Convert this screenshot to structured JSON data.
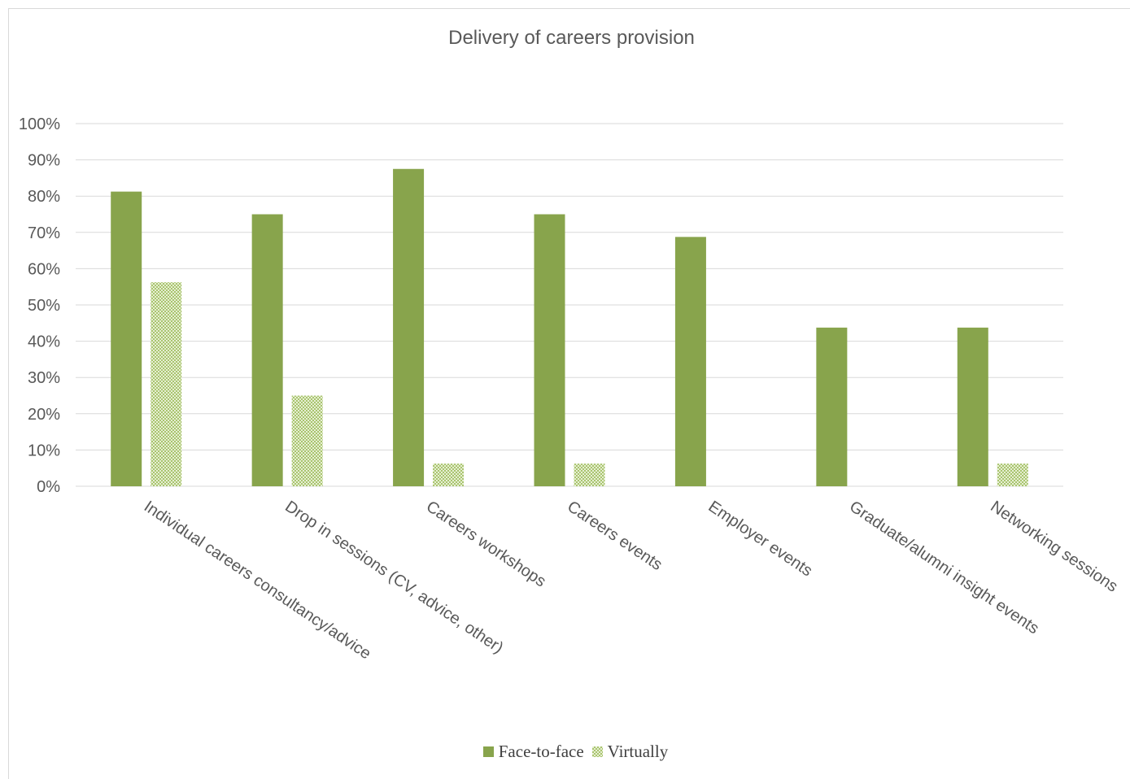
{
  "chart_data": {
    "type": "bar",
    "title": "Delivery of careers provision",
    "categories": [
      "Individual careers consultancy/advice",
      "Drop in sessions (CV, advice, other)",
      "Careers workshops",
      "Careers events",
      "Employer events",
      "Graduate/alumni insight events",
      "Networking sessions"
    ],
    "series": [
      {
        "name": "Face-to-face",
        "values": [
          81.25,
          75,
          87.5,
          75,
          68.75,
          43.75,
          43.75
        ]
      },
      {
        "name": "Virtually",
        "values": [
          56.25,
          25,
          6.25,
          6.25,
          0,
          0,
          6.25
        ]
      }
    ],
    "ylim": [
      0,
      100
    ],
    "yticks": [
      "0%",
      "10%",
      "20%",
      "30%",
      "40%",
      "50%",
      "60%",
      "70%",
      "80%",
      "90%",
      "100%"
    ],
    "xlabel": "",
    "ylabel": "",
    "grid": true,
    "legend_position": "bottom",
    "colors": {
      "face_to_face": "#88a44c",
      "virtually": "#a9c46e",
      "gridline": "#d9d9d9",
      "text": "#595959"
    }
  }
}
